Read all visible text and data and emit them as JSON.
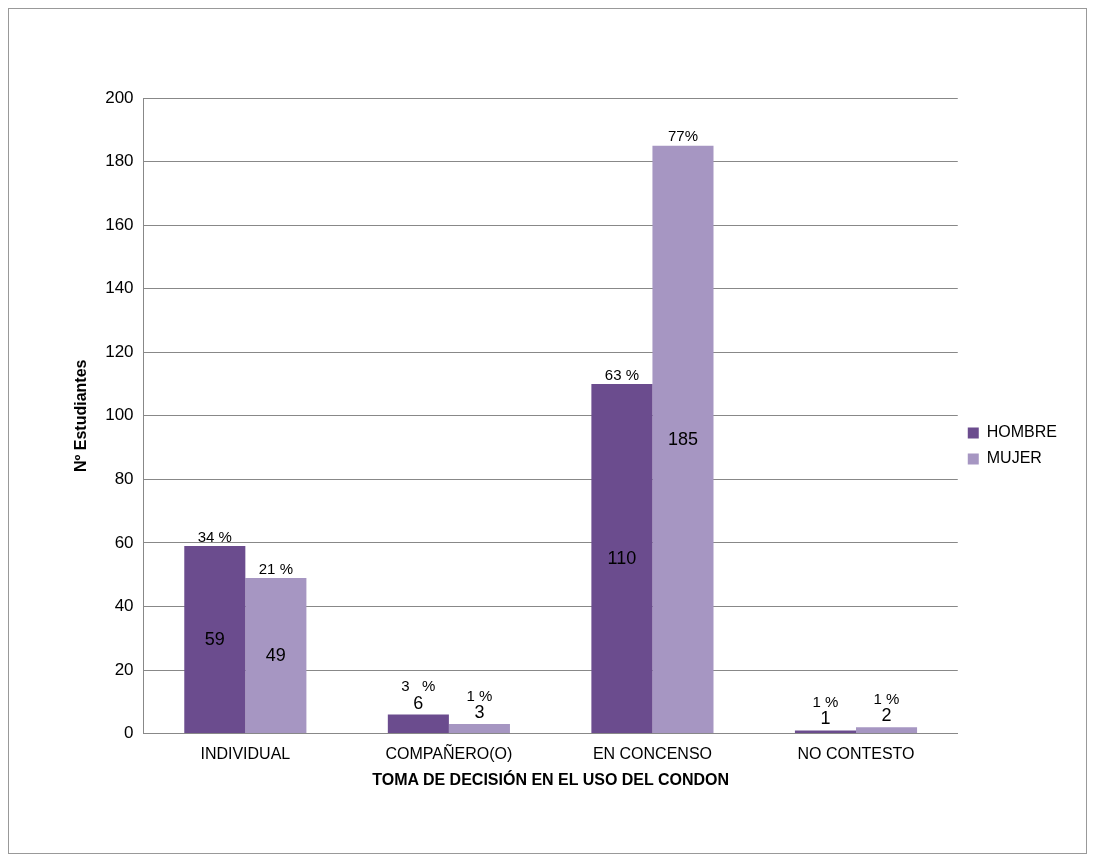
{
  "chart_data": {
    "type": "bar",
    "xlabel": "TOMA DE DECISIÓN EN EL USO DEL CONDON",
    "ylabel": "Nº Estudiantes",
    "categories": [
      "INDIVIDUAL",
      "COMPAÑERO(O)",
      "EN CONCENSO",
      "NO CONTESTO"
    ],
    "series": [
      {
        "name": "HOMBRE",
        "color": "#6b4c8e",
        "values": [
          59,
          6,
          110,
          1
        ]
      },
      {
        "name": "MUJER",
        "color": "#a696c2",
        "values": [
          49,
          3,
          185,
          2
        ]
      }
    ],
    "ylim": [
      0,
      200
    ],
    "yticks": [
      0,
      20,
      40,
      60,
      80,
      100,
      120,
      140,
      160,
      180,
      200
    ],
    "grid": "y",
    "legend": "right",
    "data_labels": true,
    "annotations": [
      {
        "text": "34 %",
        "x": "INDIVIDUAL",
        "y": 59
      },
      {
        "text": "21 %",
        "x": "INDIVIDUAL",
        "y": 49
      },
      {
        "text": "3   %",
        "x": "COMPAÑERO(O)",
        "y": 6
      },
      {
        "text": "1 %",
        "x": "COMPAÑERO(O)",
        "y": 3
      },
      {
        "text": "63 %",
        "x": "EN CONCENSO",
        "y": 110
      },
      {
        "text": "77%",
        "x": "EN CONCENSO",
        "y": 185
      },
      {
        "text": "1 %",
        "x": "NO CONTESTO",
        "y": 1
      },
      {
        "text": "1 %",
        "x": "NO CONTESTO",
        "y": 2
      }
    ]
  }
}
